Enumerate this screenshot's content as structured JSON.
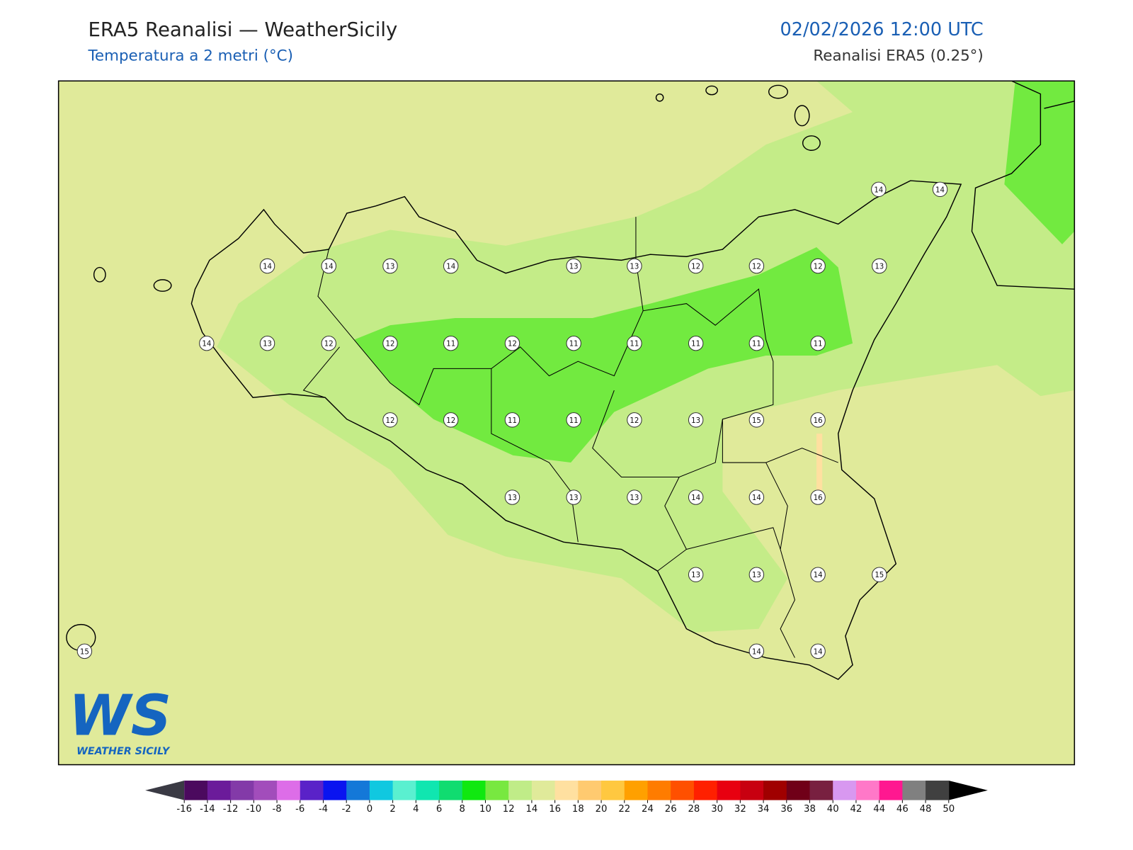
{
  "header": {
    "title": "ERA5 Reanalisi — WeatherSicily",
    "subtitle": "Temperatura a 2 metri (°C)",
    "datetime": "02/02/2026 12:00 UTC",
    "source": "Reanalisi ERA5 (0.25°)"
  },
  "map": {
    "stations": [
      14,
      14,
      14,
      14,
      13,
      14,
      13,
      13,
      12,
      12,
      12,
      13,
      14,
      13,
      12,
      12,
      11,
      12,
      11,
      11,
      11,
      11,
      11,
      12,
      12,
      11,
      11,
      12,
      13,
      15,
      16,
      13,
      13,
      13,
      14,
      14,
      16,
      13,
      13,
      14,
      15,
      15,
      14,
      14
    ]
  },
  "colorbar": {
    "ticks": [
      -16,
      -14,
      -12,
      -10,
      -8,
      -6,
      -4,
      -2,
      0,
      2,
      4,
      6,
      8,
      10,
      12,
      14,
      16,
      18,
      20,
      22,
      24,
      26,
      28,
      30,
      32,
      34,
      36,
      38,
      40,
      42,
      44,
      46,
      48,
      50
    ],
    "colors": [
      "#4b0a5e",
      "#6b1b9a",
      "#833aa8",
      "#a24dbb",
      "#dd6de8",
      "#5a22c8",
      "#0a14f0",
      "#1478d8",
      "#10c8e0",
      "#5af0d0",
      "#10e6b0",
      "#10dc70",
      "#10e810",
      "#78e840",
      "#c0ec88",
      "#e0ea9a",
      "#ffe0a0",
      "#ffca70",
      "#ffc840",
      "#ffa000",
      "#ff7c00",
      "#ff5000",
      "#ff2000",
      "#e80010",
      "#c80010",
      "#a00000",
      "#700018",
      "#782040",
      "#d898f0",
      "#ff78c8",
      "#ff1890",
      "#808080",
      "#404040"
    ],
    "under_color": "#3a3a44",
    "over_color": "#000000"
  },
  "logo": {
    "text": "WS",
    "caption": "WEATHER SICILY"
  }
}
